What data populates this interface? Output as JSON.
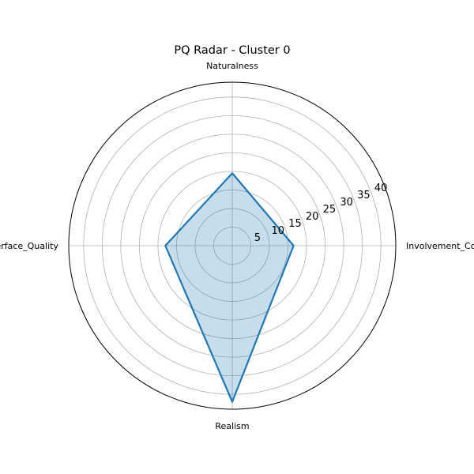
{
  "chart_data": {
    "type": "radar",
    "title": "PQ Radar - Cluster 0",
    "categories": [
      "Involvement_Control",
      "Naturalness",
      "Interface_Quality",
      "Realism"
    ],
    "series": [
      {
        "name": "Cluster 0",
        "values": [
          16.5,
          19.5,
          18,
          42
        ]
      }
    ],
    "rmax": 44,
    "rticks": [
      5,
      10,
      15,
      20,
      25,
      30,
      35,
      40
    ],
    "grid": true,
    "color": "#1f77b4"
  }
}
